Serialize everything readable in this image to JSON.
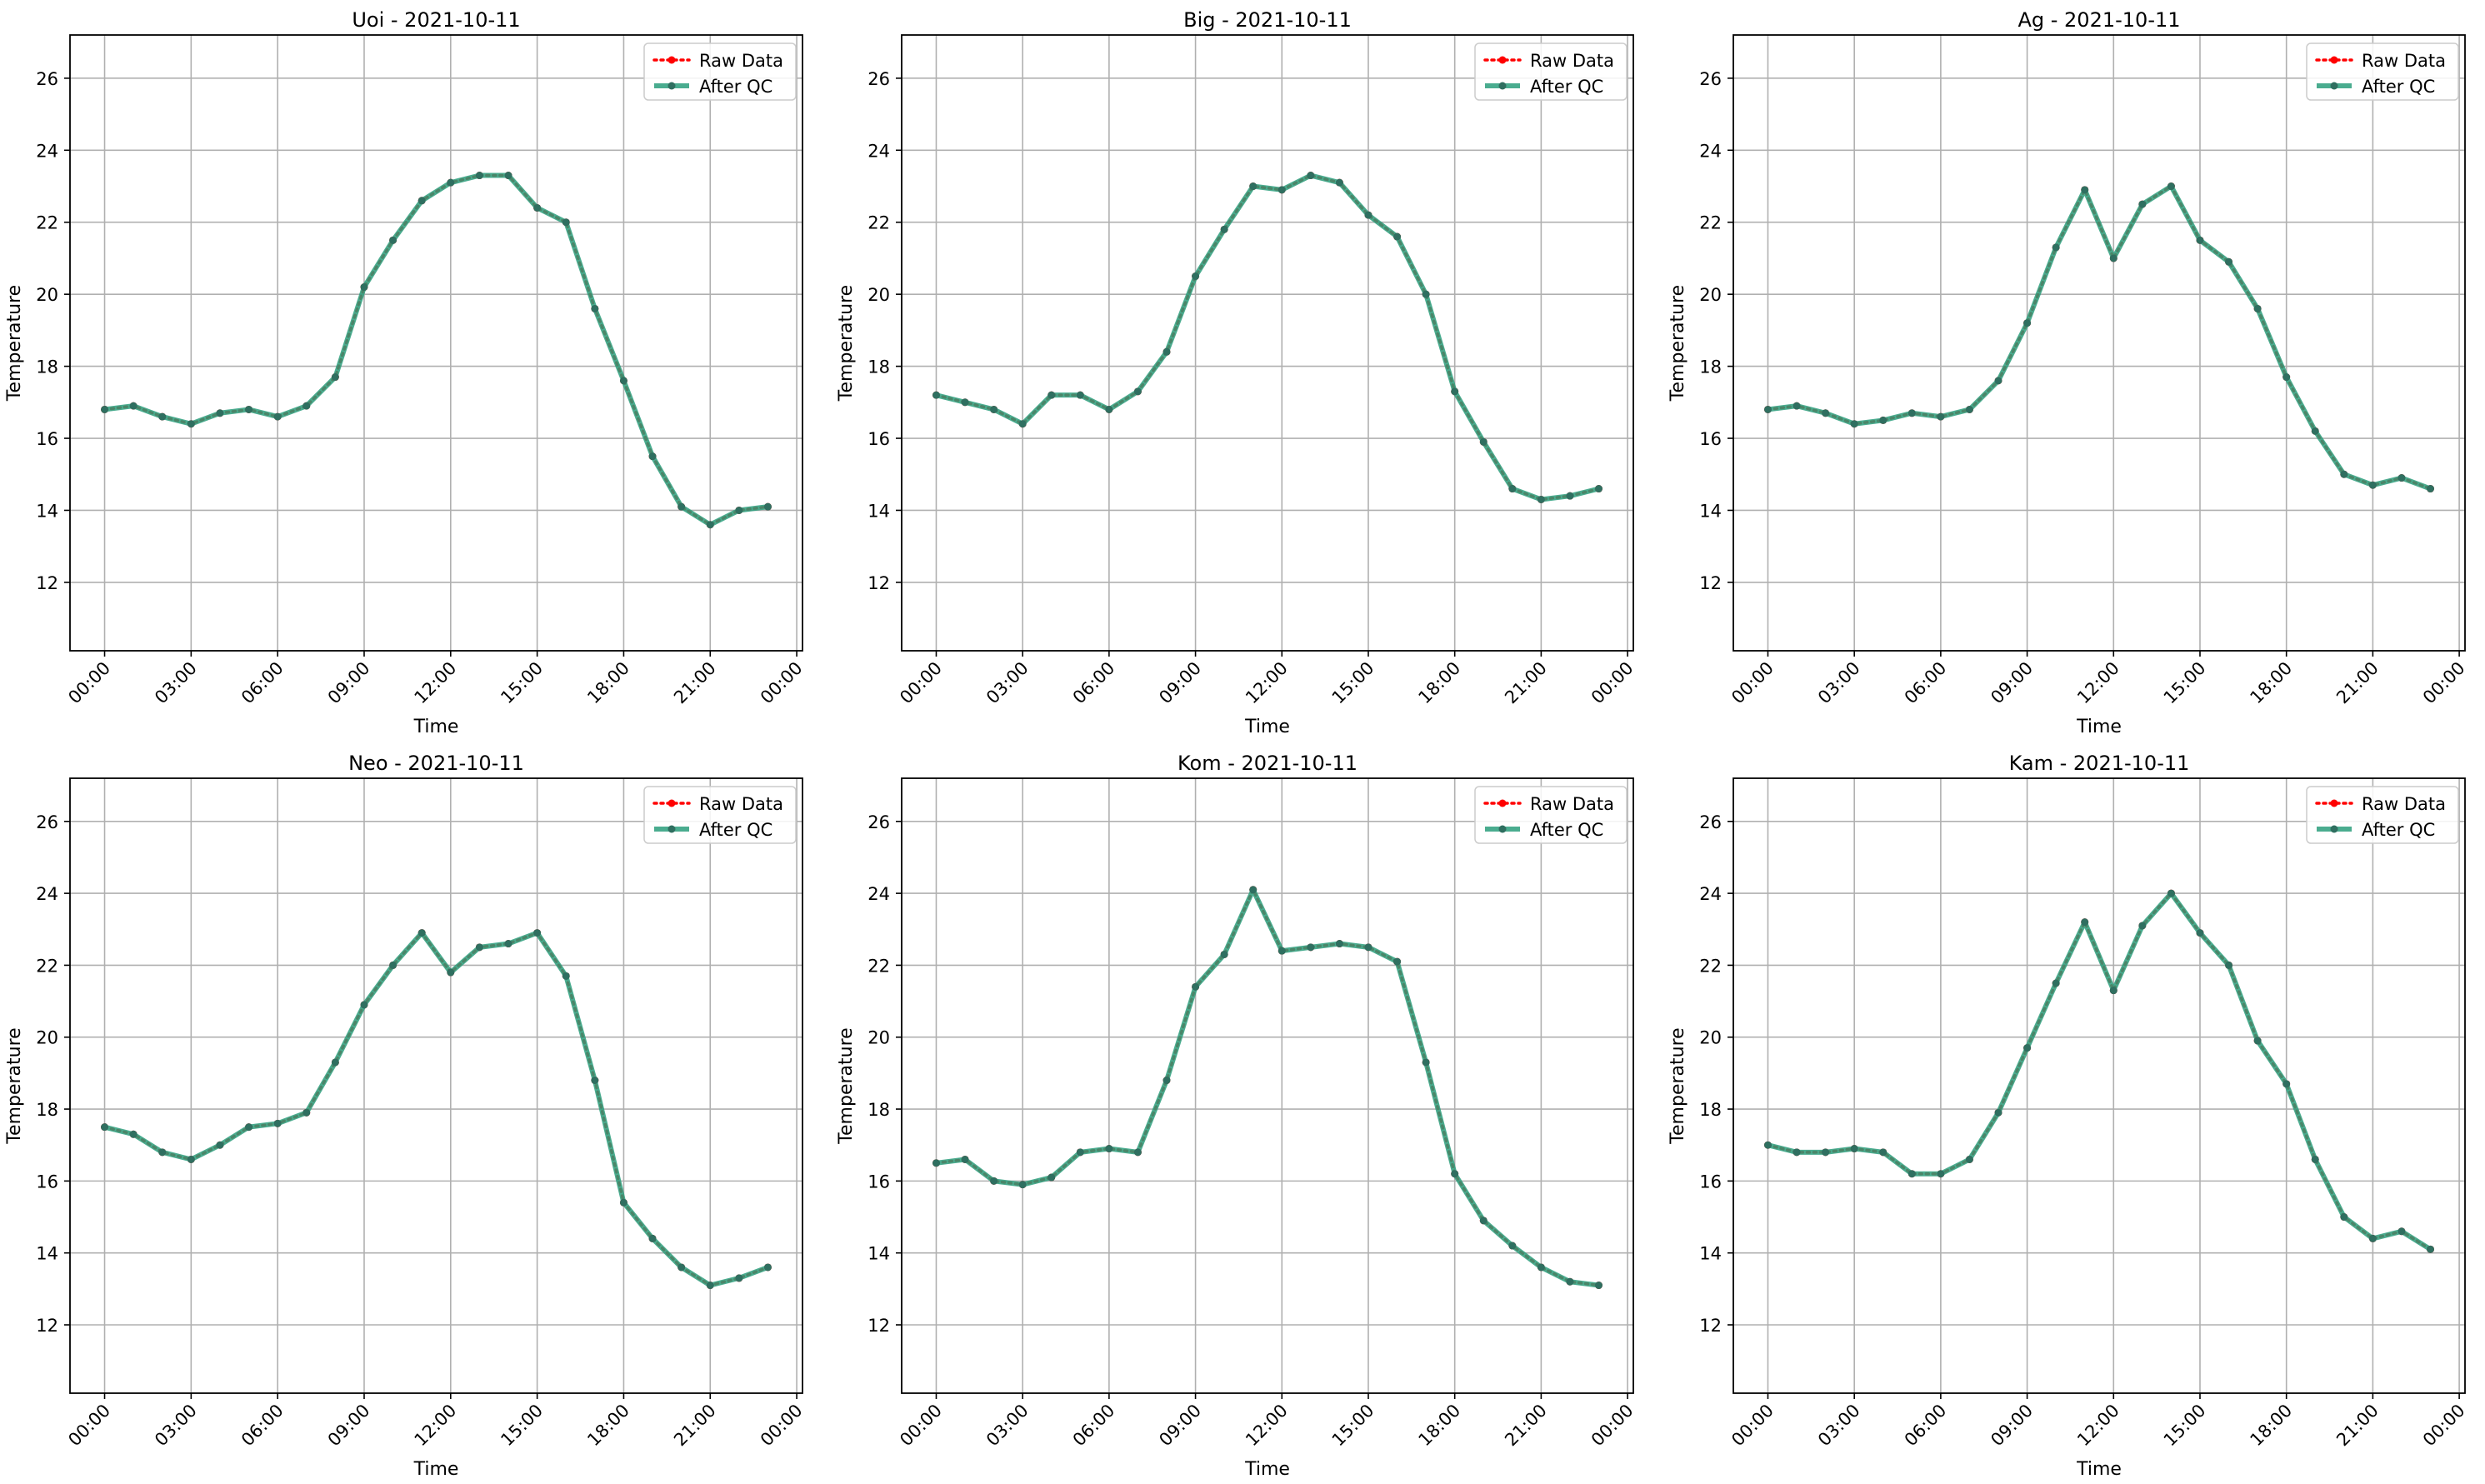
{
  "colors": {
    "raw": "#ff0000",
    "qc": "#2a9d7b",
    "qc_marker": "#2f6f60",
    "grid": "#b0b0b0",
    "axis": "#000000",
    "legend_edge": "#cccccc"
  },
  "shared": {
    "x_tick_labels": [
      "00:00",
      "03:00",
      "06:00",
      "09:00",
      "12:00",
      "15:00",
      "18:00",
      "21:00",
      "00:00"
    ],
    "y_ticks": [
      12,
      14,
      16,
      18,
      20,
      22,
      24,
      26
    ]
  },
  "chart_data": [
    {
      "type": "line",
      "title": "Uoi - 2021-10-11",
      "xlabel": "Time",
      "ylabel": "Temperature",
      "legend": "top-right",
      "grid": true,
      "xlim": [
        -1.2,
        24.2
      ],
      "ylim": [
        10.1,
        27.2
      ],
      "x_hours": [
        0,
        1,
        2,
        3,
        4,
        5,
        6,
        7,
        8,
        9,
        10,
        11,
        12,
        13,
        14,
        15,
        16,
        17,
        18,
        19,
        20,
        21,
        22,
        23
      ],
      "series": [
        {
          "name": "Raw Data",
          "style": "dotted",
          "values": [
            16.8,
            16.9,
            16.6,
            16.4,
            16.7,
            16.8,
            16.6,
            16.9,
            17.7,
            20.2,
            21.5,
            22.6,
            23.1,
            23.3,
            23.3,
            22.4,
            22.0,
            19.6,
            17.6,
            15.5,
            14.1,
            13.6,
            14.0,
            14.1
          ]
        },
        {
          "name": "After QC",
          "style": "solid",
          "values": [
            16.8,
            16.9,
            16.6,
            16.4,
            16.7,
            16.8,
            16.6,
            16.9,
            17.7,
            20.2,
            21.5,
            22.6,
            23.1,
            23.3,
            23.3,
            22.4,
            22.0,
            19.6,
            17.6,
            15.5,
            14.1,
            13.6,
            14.0,
            14.1
          ]
        }
      ]
    },
    {
      "type": "line",
      "title": "Big - 2021-10-11",
      "xlabel": "Time",
      "ylabel": "Temperature",
      "legend": "top-right",
      "grid": true,
      "xlim": [
        -1.2,
        24.2
      ],
      "ylim": [
        10.1,
        27.2
      ],
      "x_hours": [
        0,
        1,
        2,
        3,
        4,
        5,
        6,
        7,
        8,
        9,
        10,
        11,
        12,
        13,
        14,
        15,
        16,
        17,
        18,
        19,
        20,
        21,
        22,
        23
      ],
      "series": [
        {
          "name": "Raw Data",
          "style": "dotted",
          "values": [
            17.2,
            17.0,
            16.8,
            16.4,
            17.2,
            17.2,
            16.8,
            17.3,
            18.4,
            20.5,
            21.8,
            23.0,
            22.9,
            23.3,
            23.1,
            22.2,
            21.6,
            20.0,
            17.3,
            15.9,
            14.6,
            14.3,
            14.4,
            14.6
          ]
        },
        {
          "name": "After QC",
          "style": "solid",
          "values": [
            17.2,
            17.0,
            16.8,
            16.4,
            17.2,
            17.2,
            16.8,
            17.3,
            18.4,
            20.5,
            21.8,
            23.0,
            22.9,
            23.3,
            23.1,
            22.2,
            21.6,
            20.0,
            17.3,
            15.9,
            14.6,
            14.3,
            14.4,
            14.6
          ]
        }
      ]
    },
    {
      "type": "line",
      "title": "Ag - 2021-10-11",
      "xlabel": "Time",
      "ylabel": "Temperature",
      "legend": "top-right",
      "grid": true,
      "xlim": [
        -1.2,
        24.2
      ],
      "ylim": [
        10.1,
        27.2
      ],
      "x_hours": [
        0,
        1,
        2,
        3,
        4,
        5,
        6,
        7,
        8,
        9,
        10,
        11,
        12,
        13,
        14,
        15,
        16,
        17,
        18,
        19,
        20,
        21,
        22,
        23
      ],
      "series": [
        {
          "name": "Raw Data",
          "style": "dotted",
          "values": [
            16.8,
            16.9,
            16.7,
            16.4,
            16.5,
            16.7,
            16.6,
            16.8,
            17.6,
            19.2,
            21.3,
            22.9,
            21.0,
            22.5,
            23.0,
            21.5,
            20.9,
            19.6,
            17.7,
            16.2,
            15.0,
            14.7,
            14.9,
            14.6
          ]
        },
        {
          "name": "After QC",
          "style": "solid",
          "values": [
            16.8,
            16.9,
            16.7,
            16.4,
            16.5,
            16.7,
            16.6,
            16.8,
            17.6,
            19.2,
            21.3,
            22.9,
            21.0,
            22.5,
            23.0,
            21.5,
            20.9,
            19.6,
            17.7,
            16.2,
            15.0,
            14.7,
            14.9,
            14.6
          ]
        }
      ]
    },
    {
      "type": "line",
      "title": "Neo - 2021-10-11",
      "xlabel": "Time",
      "ylabel": "Temperature",
      "legend": "top-right",
      "grid": true,
      "xlim": [
        -1.2,
        24.2
      ],
      "ylim": [
        10.1,
        27.2
      ],
      "x_hours": [
        0,
        1,
        2,
        3,
        4,
        5,
        6,
        7,
        8,
        9,
        10,
        11,
        12,
        13,
        14,
        15,
        16,
        17,
        18,
        19,
        20,
        21,
        22,
        23
      ],
      "series": [
        {
          "name": "Raw Data",
          "style": "dotted",
          "values": [
            17.5,
            17.3,
            16.8,
            16.6,
            17.0,
            17.5,
            17.6,
            17.9,
            19.3,
            20.9,
            22.0,
            22.9,
            21.8,
            22.5,
            22.6,
            22.9,
            21.7,
            18.8,
            15.4,
            14.4,
            13.6,
            13.1,
            13.3,
            13.6
          ]
        },
        {
          "name": "After QC",
          "style": "solid",
          "values": [
            17.5,
            17.3,
            16.8,
            16.6,
            17.0,
            17.5,
            17.6,
            17.9,
            19.3,
            20.9,
            22.0,
            22.9,
            21.8,
            22.5,
            22.6,
            22.9,
            21.7,
            18.8,
            15.4,
            14.4,
            13.6,
            13.1,
            13.3,
            13.6
          ]
        }
      ]
    },
    {
      "type": "line",
      "title": "Kom - 2021-10-11",
      "xlabel": "Time",
      "ylabel": "Temperature",
      "legend": "top-right",
      "grid": true,
      "xlim": [
        -1.2,
        24.2
      ],
      "ylim": [
        10.1,
        27.2
      ],
      "x_hours": [
        0,
        1,
        2,
        3,
        4,
        5,
        6,
        7,
        8,
        9,
        10,
        11,
        12,
        13,
        14,
        15,
        16,
        17,
        18,
        19,
        20,
        21,
        22,
        23
      ],
      "series": [
        {
          "name": "Raw Data",
          "style": "dotted",
          "values": [
            16.5,
            16.6,
            16.0,
            15.9,
            16.1,
            16.8,
            16.9,
            16.8,
            18.8,
            21.4,
            22.3,
            24.1,
            22.4,
            22.5,
            22.6,
            22.5,
            22.1,
            19.3,
            16.2,
            14.9,
            14.2,
            13.6,
            13.2,
            13.1
          ]
        },
        {
          "name": "After QC",
          "style": "solid",
          "values": [
            16.5,
            16.6,
            16.0,
            15.9,
            16.1,
            16.8,
            16.9,
            16.8,
            18.8,
            21.4,
            22.3,
            24.1,
            22.4,
            22.5,
            22.6,
            22.5,
            22.1,
            19.3,
            16.2,
            14.9,
            14.2,
            13.6,
            13.2,
            13.1
          ]
        }
      ]
    },
    {
      "type": "line",
      "title": "Kam - 2021-10-11",
      "xlabel": "Time",
      "ylabel": "Temperature",
      "legend": "top-right",
      "grid": true,
      "xlim": [
        -1.2,
        24.2
      ],
      "ylim": [
        10.1,
        27.2
      ],
      "x_hours": [
        0,
        1,
        2,
        3,
        4,
        5,
        6,
        7,
        8,
        9,
        10,
        11,
        12,
        13,
        14,
        15,
        16,
        17,
        18,
        19,
        20,
        21,
        22,
        23
      ],
      "series": [
        {
          "name": "Raw Data",
          "style": "dotted",
          "values": [
            17.0,
            16.8,
            16.8,
            16.9,
            16.8,
            16.2,
            16.2,
            16.6,
            17.9,
            19.7,
            21.5,
            23.2,
            21.3,
            23.1,
            24.0,
            22.9,
            22.0,
            19.9,
            18.7,
            16.6,
            15.0,
            14.4,
            14.6,
            14.1
          ]
        },
        {
          "name": "After QC",
          "style": "solid",
          "values": [
            17.0,
            16.8,
            16.8,
            16.9,
            16.8,
            16.2,
            16.2,
            16.6,
            17.9,
            19.7,
            21.5,
            23.2,
            21.3,
            23.1,
            24.0,
            22.9,
            22.0,
            19.9,
            18.7,
            16.6,
            15.0,
            14.4,
            14.6,
            14.1
          ]
        }
      ]
    }
  ]
}
